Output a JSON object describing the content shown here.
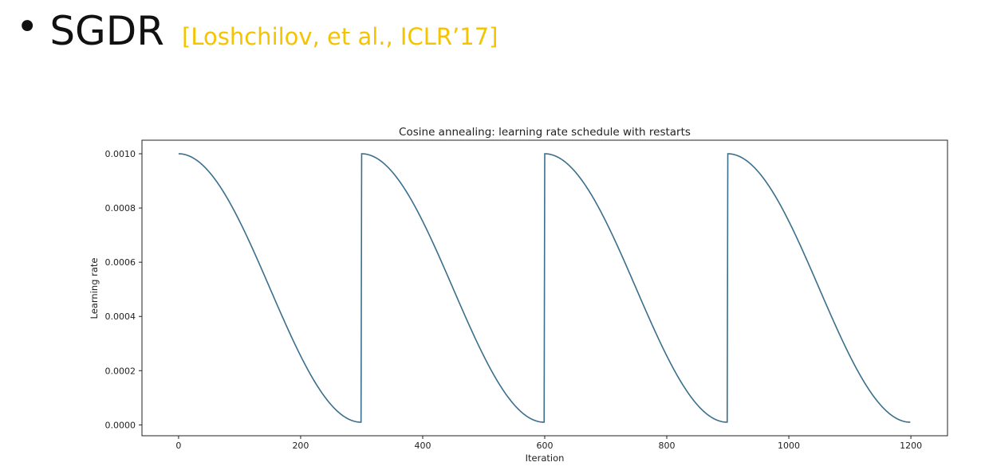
{
  "slide": {
    "bullet": "•",
    "title": "SGDR",
    "citation": "[Loshchilov, et al., ICLR’17]",
    "citation_color": "#f5c400"
  },
  "chart_data": {
    "type": "line",
    "title": "Cosine annealing: learning rate schedule with restarts",
    "xlabel": "Iteration",
    "ylabel": "Learning rate",
    "xlim": [
      -60,
      1260
    ],
    "ylim": [
      -4e-05,
      0.00105
    ],
    "x_ticks": [
      0,
      200,
      400,
      600,
      800,
      1000,
      1200
    ],
    "x_tick_labels": [
      "0",
      "200",
      "400",
      "600",
      "800",
      "1000",
      "1200"
    ],
    "y_ticks": [
      0.0,
      0.0002,
      0.0004,
      0.0006,
      0.0008,
      0.001
    ],
    "y_tick_labels": [
      "0.0000",
      "0.0002",
      "0.0004",
      "0.0006",
      "0.0008",
      "0.0010"
    ],
    "grid": false,
    "series": [
      {
        "color": "#3a6f8c",
        "cycle_length": 300,
        "lr_max": 0.001,
        "lr_min": 1e-05,
        "x": [
          0,
          30,
          60,
          90,
          120,
          150,
          180,
          210,
          240,
          270,
          299,
          300,
          330,
          360,
          390,
          420,
          450,
          480,
          510,
          540,
          570,
          599,
          600,
          630,
          660,
          690,
          720,
          750,
          780,
          810,
          840,
          870,
          899,
          900,
          930,
          960,
          990,
          1020,
          1050,
          1080,
          1110,
          1140,
          1170,
          1199
        ],
        "values": [
          0.001,
          0.000976,
          0.000905,
          0.000797,
          0.000658,
          0.000505,
          0.000352,
          0.000213,
          0.000104,
          3.4e-05,
          1e-05,
          0.001,
          0.000976,
          0.000905,
          0.000797,
          0.000658,
          0.000505,
          0.000352,
          0.000213,
          0.000104,
          3.4e-05,
          1e-05,
          0.001,
          0.000976,
          0.000905,
          0.000797,
          0.000658,
          0.000505,
          0.000352,
          0.000213,
          0.000104,
          3.4e-05,
          1e-05,
          0.001,
          0.000976,
          0.000905,
          0.000797,
          0.000658,
          0.000505,
          0.000352,
          0.000213,
          0.000104,
          3.4e-05,
          1e-05
        ]
      }
    ]
  }
}
